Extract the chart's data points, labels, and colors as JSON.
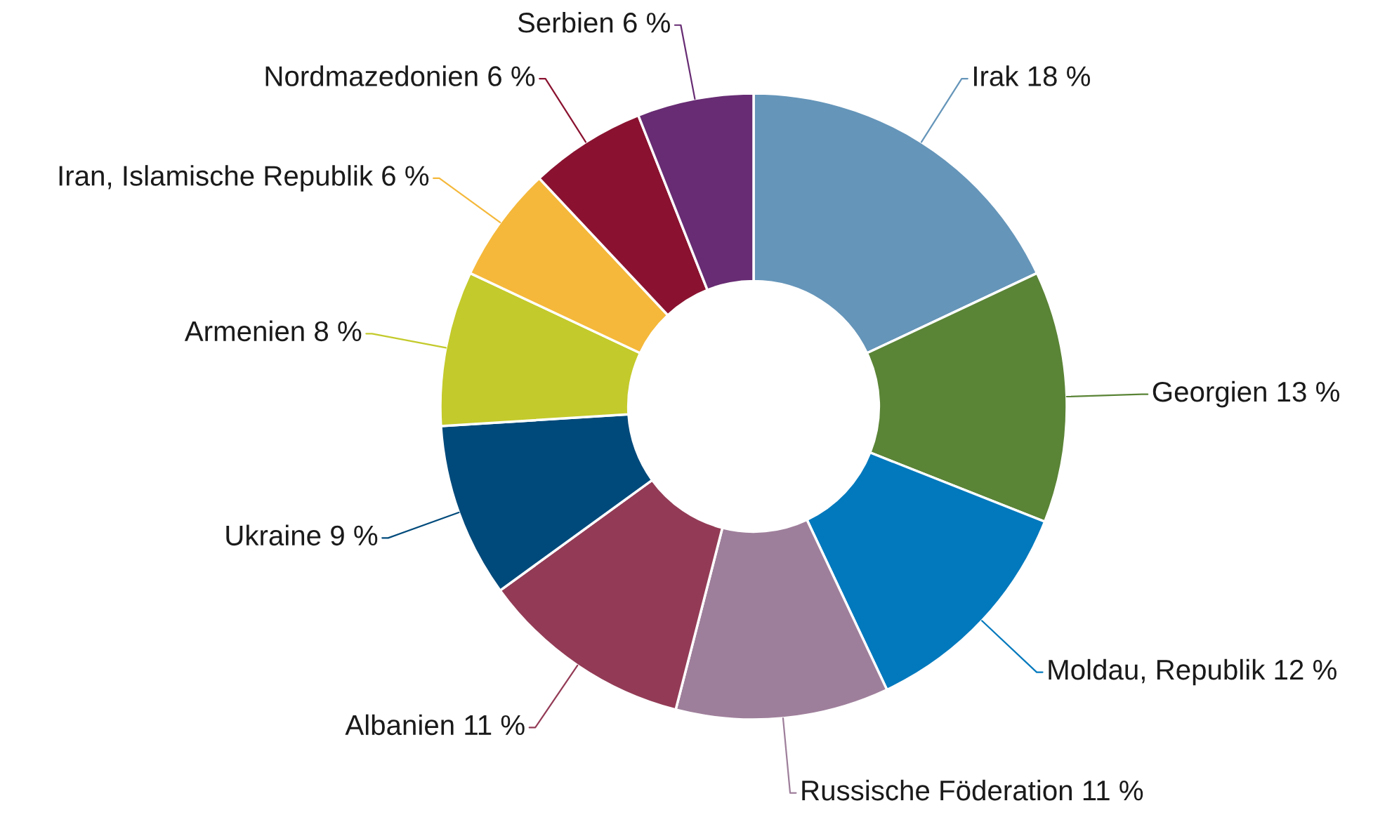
{
  "chart_data": {
    "type": "donut",
    "categories": [
      "Irak",
      "Georgien",
      "Moldau, Republik",
      "Russische Föderation",
      "Albanien",
      "Ukraine",
      "Armenien",
      "Iran, Islamische Republik",
      "Nordmazedonien",
      "Serbien"
    ],
    "values": [
      18,
      13,
      12,
      11,
      11,
      9,
      8,
      6,
      6,
      6
    ],
    "value_labels": [
      "18 %",
      "13 %",
      "12 %",
      "11 %",
      "11 %",
      "9 %",
      "8 %",
      "6 %",
      "6 %",
      "6 %"
    ],
    "colors": [
      "#6595b9",
      "#5a8436",
      "#0279bd",
      "#9e7f9b",
      "#933b56",
      "#004a7b",
      "#c3ca2b",
      "#f5b83a",
      "#8a1230",
      "#672c73"
    ]
  }
}
